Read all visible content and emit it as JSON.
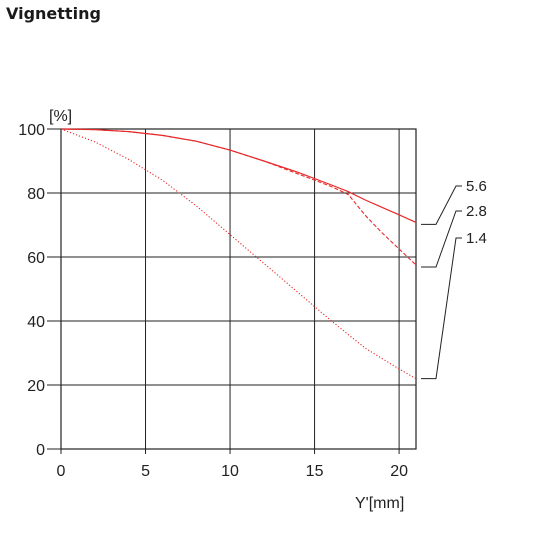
{
  "title": "Vignetting",
  "chart_data": {
    "type": "line",
    "xlabel": "Y'[mm]",
    "ylabel": "[%]",
    "xlim": [
      0,
      21
    ],
    "ylim": [
      0,
      100
    ],
    "x_ticks": [
      0,
      5,
      10,
      15,
      20
    ],
    "y_ticks": [
      0,
      20,
      40,
      60,
      80,
      100
    ],
    "grid": true,
    "legend": "right, labels connected to curve ends by leader lines",
    "series": [
      {
        "name": "5.6",
        "style": "solid",
        "x": [
          0,
          2,
          4,
          6,
          8,
          10,
          12,
          14,
          16,
          17,
          18,
          19,
          20,
          21
        ],
        "y": [
          100,
          99.8,
          99.2,
          98.0,
          96.2,
          93.4,
          90.0,
          86.5,
          82.5,
          80.4,
          77.8,
          75.5,
          73.2,
          70.8
        ]
      },
      {
        "name": "2.8",
        "style": "dashed",
        "x": [
          0,
          2,
          4,
          6,
          8,
          10,
          12,
          14,
          16,
          17,
          18,
          19,
          20,
          21
        ],
        "y": [
          100,
          99.8,
          99.2,
          98.0,
          96.2,
          93.4,
          90.0,
          86.0,
          82.0,
          79.5,
          73.0,
          67.5,
          62.5,
          57.5
        ]
      },
      {
        "name": "1.4",
        "style": "dotted",
        "x": [
          0,
          2,
          4,
          6,
          8,
          10,
          12,
          14,
          16,
          18,
          20,
          21
        ],
        "y": [
          100,
          96.0,
          90.5,
          84.0,
          76.0,
          67.0,
          58.0,
          49.0,
          40.0,
          31.5,
          25.0,
          22.0
        ]
      }
    ],
    "line_color": "#e8292a"
  }
}
